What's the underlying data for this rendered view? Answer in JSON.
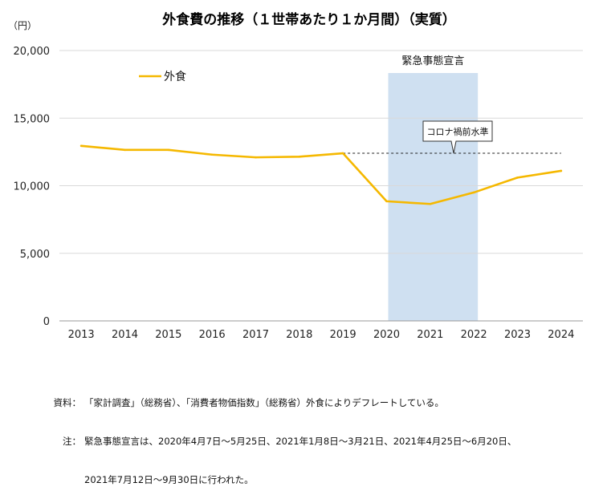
{
  "chart_data": {
    "type": "line",
    "title": "外食費の推移（１世帯あたり１か月間）（実質）",
    "unit_label": "（円）",
    "x": [
      "2013",
      "2014",
      "2015",
      "2016",
      "2017",
      "2018",
      "2019",
      "2020",
      "2021",
      "2022",
      "2023",
      "2024"
    ],
    "series": [
      {
        "name": "外食",
        "color": "#F5B800",
        "values": [
          12950,
          12650,
          12650,
          12300,
          12100,
          12150,
          12400,
          8850,
          8650,
          9500,
          10600,
          11100
        ]
      }
    ],
    "ylim": [
      0,
      20000
    ],
    "yticks": [
      0,
      5000,
      10000,
      15000,
      20000
    ],
    "ytick_labels": [
      "0",
      "5,000",
      "10,000",
      "15,000",
      "20,000"
    ],
    "grid": "horizontal",
    "legend_position": "top-left",
    "shaded_region": {
      "label": "緊急事態宣言",
      "from": "2020",
      "to": "2022",
      "color": "#CFE0F1"
    },
    "reference_line": {
      "label": "コロナ禍前水準",
      "value": 12400,
      "from": "2019",
      "to": "2024"
    }
  },
  "notes": [
    {
      "head": "資料：",
      "text": "「家計調査」（総務省）、「消費者物価指数」（総務省）外食によりデフレートしている。"
    },
    {
      "head": "注：",
      "text": "緊急事態宣言は、2020年4月7日～5月25日、2021年1月8日～3月21日、2021年4月25日～6月20日、"
    },
    {
      "head": "",
      "text": "2021年7月12日～9月30日に行われた。"
    }
  ]
}
